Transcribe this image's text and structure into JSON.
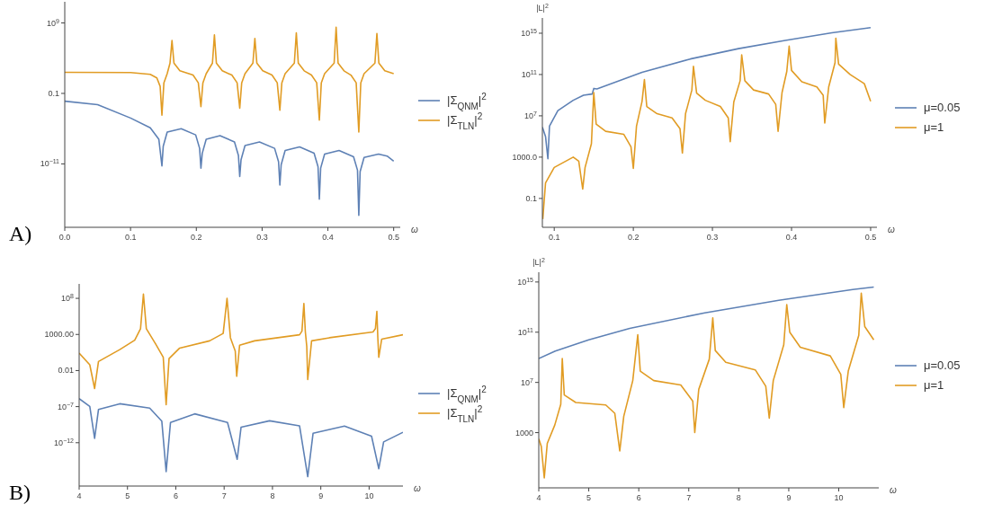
{
  "chart_data": [
    {
      "type": "line",
      "xlabel": "ω",
      "annotations": [
        "A)"
      ],
      "xlim": [
        0,
        0.51
      ],
      "ylim": [
        1e-20,
        1000000000000.0
      ],
      "log": "y",
      "legend": "right",
      "xticks": [
        {
          "value": 0,
          "label": "0.0"
        },
        0.1,
        0.2,
        0.3,
        0.4,
        0.5
      ],
      "yticks": [
        {
          "value": 1e-11,
          "label": "10$^{−11}$"
        },
        0.1,
        {
          "value": 1000000000.0,
          "label": "10$^{9}$"
        }
      ],
      "series": [
        {
          "name": "|Σ$_{QNM}$|$^{2}$",
          "color": "#5e81b5",
          "x": [
            0,
            0.05,
            0.1,
            0.13,
            0.143,
            0.1477,
            0.1497,
            0.1557,
            0.177,
            0.199,
            0.205,
            0.207,
            0.209,
            0.215,
            0.236,
            0.258,
            0.264,
            0.266,
            0.268,
            0.274,
            0.296,
            0.319,
            0.325,
            0.327,
            0.329,
            0.335,
            0.357,
            0.379,
            0.385,
            0.387,
            0.389,
            0.395,
            0.417,
            0.439,
            0.445,
            0.447,
            0.449,
            0.455,
            0.477,
            0.49,
            0.5
          ],
          "values": [
            0.008,
            0.0025,
            3.2e-05,
            1.3e-06,
            3.2e-08,
            5e-12,
            3.2e-09,
            3.2e-07,
            1e-06,
            1.3e-07,
            1.6e-09,
            2.5e-12,
            3.2e-10,
            3.2e-08,
            1e-07,
            1.3e-08,
            1.6e-10,
            1.6e-13,
            4e-11,
            4e-09,
            1.3e-08,
            1.6e-09,
            2e-11,
            1e-14,
            8e-12,
            8e-10,
            2.5e-09,
            3.2e-10,
            4e-12,
            1e-16,
            2.5e-12,
            2.5e-10,
            8e-10,
            1e-10,
            1.3e-12,
            5e-19,
            8e-13,
            8e-11,
            2.5e-10,
            1.3e-10,
            2.5e-11
          ]
        },
        {
          "name": "|Σ$_{TLN}$|$^{2}$",
          "color": "#e19c24",
          "x": [
            0,
            0.1,
            0.13,
            0.14,
            0.145,
            0.1477,
            0.1507,
            0.1557,
            0.16,
            0.163,
            0.166,
            0.175,
            0.195,
            0.203,
            0.207,
            0.21,
            0.215,
            0.2245,
            0.2275,
            0.2305,
            0.2395,
            0.254,
            0.262,
            0.266,
            0.269,
            0.274,
            0.286,
            0.289,
            0.292,
            0.301,
            0.315,
            0.323,
            0.327,
            0.33,
            0.335,
            0.349,
            0.352,
            0.355,
            0.364,
            0.375,
            0.383,
            0.387,
            0.39,
            0.395,
            0.4095,
            0.4125,
            0.4155,
            0.4245,
            0.435,
            0.443,
            0.447,
            0.45,
            0.455,
            0.4715,
            0.4745,
            0.4775,
            0.4865,
            0.5
          ],
          "values": [
            100,
            90,
            50,
            16,
            1,
            8e-05,
            3.2,
            63,
            2000,
            3200000.0,
            2000,
            160,
            40,
            3.2,
            0.0013,
            3.2,
            63,
            2000,
            20000000.0,
            2000,
            160,
            40,
            3.2,
            0.0008,
            3.2,
            63,
            2000,
            6300000.0,
            2000,
            160,
            40,
            3.2,
            0.0004,
            3.2,
            63,
            2000,
            40000000.0,
            2000,
            160,
            40,
            3.2,
            1.6e-05,
            3.2,
            63,
            2000,
            250000000.0,
            2000,
            160,
            40,
            3.2,
            3.2e-07,
            3.2,
            63,
            2000,
            32000000.0,
            2000,
            160,
            63
          ]
        }
      ]
    },
    {
      "type": "line",
      "xlabel": "ω",
      "ylabel": "|L|$^{2}$",
      "xlim": [
        0.085,
        0.508
      ],
      "ylim": [
        0.00016,
        3e+16
      ],
      "log": "y",
      "legend": "right",
      "xticks": [
        0.1,
        0.2,
        0.3,
        0.4,
        0.5
      ],
      "yticks": [
        0.1,
        {
          "value": 1000,
          "label": "1000.0"
        },
        {
          "value": 10000000.0,
          "label": "10$^{7}$"
        },
        {
          "value": 100000000000.0,
          "label": "10$^{11}$"
        },
        {
          "value": 1000000000000000.0,
          "label": "10$^{15}$"
        }
      ],
      "series": [
        {
          "name": "μ=0.05",
          "color": "#5e81b5",
          "x": [
            0.085,
            0.089,
            0.092,
            0.094,
            0.1046,
            0.124,
            0.137,
            0.148,
            0.15,
            0.154,
            0.211,
            0.272,
            0.333,
            0.392,
            0.451,
            0.5
          ],
          "values": [
            800000.0,
            100000.0,
            700.0,
            1000000.0,
            32000000.0,
            320000000.0,
            1000000000.0,
            1300000000.0,
            4500000000.0,
            4000000000.0,
            160000000000.0,
            3200000000000.0,
            32000000000000.0,
            200000000000000.0,
            1100000000000000.0,
            3500000000000000.0
          ]
        },
        {
          "name": "μ=1",
          "color": "#e19c24",
          "x": [
            0.0855,
            0.089,
            0.1,
            0.124,
            0.131,
            0.136,
            0.139,
            0.147,
            0.15,
            0.153,
            0.165,
            0.188,
            0.197,
            0.2,
            0.204,
            0.211,
            0.214,
            0.217,
            0.23,
            0.249,
            0.259,
            0.262,
            0.266,
            0.274,
            0.276,
            0.28,
            0.291,
            0.31,
            0.32,
            0.3225,
            0.327,
            0.335,
            0.337,
            0.341,
            0.352,
            0.371,
            0.38,
            0.383,
            0.388,
            0.394,
            0.397,
            0.4,
            0.413,
            0.432,
            0.44,
            0.442,
            0.447,
            0.455,
            0.456,
            0.4595,
            0.474,
            0.492,
            0.5
          ],
          "values": [
            0.001,
            3.2,
            100,
            1000,
            400,
            0.8,
            100,
            20000.0,
            1800000000.0,
            1600000.0,
            320000.0,
            160000.0,
            10000.0,
            80,
            1000000.0,
            250000000.0,
            32000000000.0,
            80000000.0,
            16000000.0,
            6300000.0,
            560000.0,
            2500.0,
            16000000.0,
            3200000000.0,
            630000000000.0,
            1600000000.0,
            320000000.0,
            80000000.0,
            6300000.0,
            32000.0,
            220000000.0,
            25000000000.0,
            8000000000000.0,
            25000000000.0,
            3200000000.0,
            1300000000.0,
            130000000.0,
            320000.0,
            1800000000.0,
            200000000000.0,
            56000000000000.0,
            250000000000.0,
            20000000000.0,
            6300000000.0,
            1000000000.0,
            2000000.0,
            6300000000.0,
            1400000000000.0,
            320000000000000.0,
            1000000000000.0,
            100000000000.0,
            13000000000.0,
            250000000.0
          ]
        }
      ]
    },
    {
      "type": "line",
      "xlabel": "ω",
      "annotations": [
        "B)"
      ],
      "xlim": [
        4,
        10.7
      ],
      "ylim": [
        1e-18,
        10000000000.0
      ],
      "log": "y",
      "legend": "right",
      "xticks": [
        4,
        5,
        6,
        7,
        8,
        9,
        10
      ],
      "yticks": [
        {
          "value": 1e-12,
          "label": "10$^{−12}$"
        },
        {
          "value": 1e-07,
          "label": "10$^{−7}$"
        },
        0.01,
        {
          "value": 1000,
          "label": "1000.00"
        },
        {
          "value": 100000000.0,
          "label": "10$^{8}$"
        }
      ],
      "series": [
        {
          "name": "|Σ$_{QNM}$|$^{2}$",
          "color": "#5e81b5",
          "x": [
            4,
            4.22,
            4.32,
            4.4,
            4.84,
            5.46,
            5.71,
            5.8,
            5.89,
            6.39,
            7.07,
            7.27,
            7.35,
            7.94,
            8.56,
            8.73,
            8.84,
            9.49,
            10.05,
            10.2,
            10.3,
            10.7
          ],
          "values": [
            1.3e-06,
            1.1e-07,
            4e-12,
            4e-08,
            2.5e-07,
            6.3e-08,
            1e-09,
            1e-16,
            6.3e-10,
            1e-08,
            6.3e-10,
            5e-15,
            1.4e-10,
            1.1e-09,
            2.2e-10,
            2e-17,
            2e-11,
            2e-10,
            8e-12,
            2.5e-16,
            1.3e-12,
            2.8e-11
          ]
        },
        {
          "name": "|Σ$_{TLN}$|$^{2}$",
          "color": "#e19c24",
          "x": [
            4,
            4.22,
            4.32,
            4.4,
            4.84,
            5.15,
            5.27,
            5.33,
            5.39,
            5.58,
            5.74,
            5.8,
            5.86,
            6.08,
            6.7,
            6.98,
            7.06,
            7.13,
            7.23,
            7.26,
            7.32,
            7.63,
            8.56,
            8.61,
            8.65,
            8.68,
            8.71,
            8.73,
            8.81,
            9.18,
            10.08,
            10.13,
            10.16,
            10.18,
            10.2,
            10.26,
            10.7
          ],
          "values": [
            2.5,
            0.063,
            3.2e-05,
            0.18,
            8,
            160,
            6300,
            400000000.0,
            6300,
            50,
            0.7,
            1.8e-07,
            0.45,
            13,
            130,
            1400,
            100000000.0,
            350,
            5,
            0.0016,
            32,
            130,
            900,
            2800,
            20000000.0,
            2500,
            20,
            0.00056,
            130,
            350,
            2200,
            6300,
            1600000.0,
            350,
            0.7,
            220,
            900
          ]
        }
      ]
    },
    {
      "type": "line",
      "xlabel": "ω",
      "ylabel": "|L|$^{2}$",
      "xlim": [
        4,
        10.8
      ],
      "ylim": [
        0.04,
        6000000000000000.0
      ],
      "log": "y",
      "legend": "right",
      "xticks": [
        4,
        5,
        6,
        7,
        8,
        9,
        10
      ],
      "yticks": [
        1000,
        {
          "value": 10000000.0,
          "label": "10$^{7}$"
        },
        {
          "value": 100000000000.0,
          "label": "10$^{11}$"
        },
        {
          "value": 1000000000000000.0,
          "label": "10$^{15}$"
        }
      ],
      "series": [
        {
          "name": "μ=0.05",
          "color": "#5e81b5",
          "x": [
            4,
            4.33,
            5,
            5.82,
            7.32,
            8.8,
            10.28,
            10.7
          ],
          "values": [
            800000000.0,
            3200000000.0,
            25000000000.0,
            200000000000.0,
            3500000000000.0,
            35000000000000.0,
            250000000000000.0,
            400000000000000.0
          ]
        },
        {
          "name": "μ=1",
          "color": "#e19c24",
          "x": [
            4,
            4.05,
            4.11,
            4.17,
            4.32,
            4.44,
            4.47,
            4.51,
            4.74,
            5.34,
            5.52,
            5.62,
            5.7,
            5.88,
            5.98,
            6.03,
            6.3,
            6.84,
            7.08,
            7.12,
            7.2,
            7.41,
            7.48,
            7.53,
            7.74,
            8.33,
            8.54,
            8.61,
            8.69,
            8.9,
            8.96,
            9.02,
            9.23,
            9.83,
            10.04,
            10.1,
            10.19,
            10.4,
            10.45,
            10.52,
            10.7
          ],
          "values": [
            320,
            80,
            0.25,
            140,
            4000.0,
            180000.0,
            800000000.0,
            1000000.0,
            250000.0,
            160000.0,
            35000.0,
            35,
            20000.0,
            14000000.0,
            63000000000.0,
            80000000.0,
            14000000.0,
            6300000.0,
            320000.0,
            1000.0,
            2800000.0,
            700000000.0,
            1400000000000.0,
            3500000000.0,
            400000000.0,
            100000000.0,
            5000000.0,
            14000.0,
            14000000.0,
            10000000000.0,
            16000000000000.0,
            100000000000.0,
            6300000000.0,
            1300000000.0,
            45000000.0,
            100000.0,
            80000000.0,
            56000000000.0,
            130000000000000.0,
            280000000000.0,
            25000000000.0
          ]
        }
      ]
    }
  ]
}
